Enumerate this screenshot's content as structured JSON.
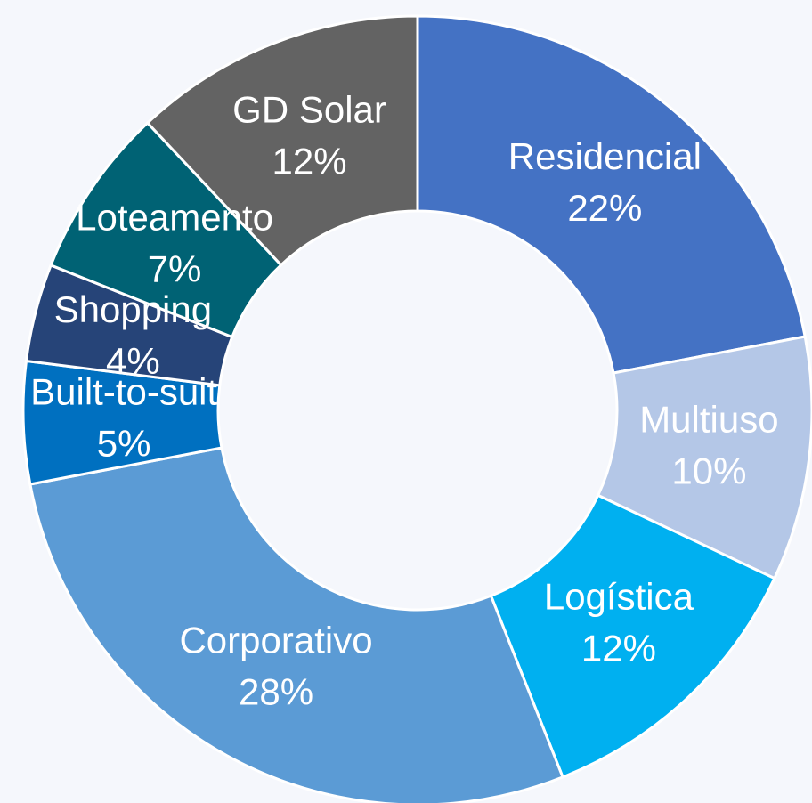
{
  "chart_data": {
    "type": "donut",
    "categories": [
      "Residencial",
      "Multiuso",
      "Logística",
      "Corporativo",
      "Built-to-suit",
      "Shopping",
      "Loteamento",
      "GD Solar"
    ],
    "values": [
      22,
      10,
      12,
      28,
      5,
      4,
      7,
      12
    ],
    "value_labels": [
      "22%",
      "10%",
      "12%",
      "28%",
      "5%",
      "4%",
      "7%",
      "12%"
    ],
    "colors": [
      "#4472c4",
      "#b4c7e7",
      "#00b0f0",
      "#5b9bd5",
      "#0070c0",
      "#264478",
      "#006274",
      "#636363"
    ]
  }
}
